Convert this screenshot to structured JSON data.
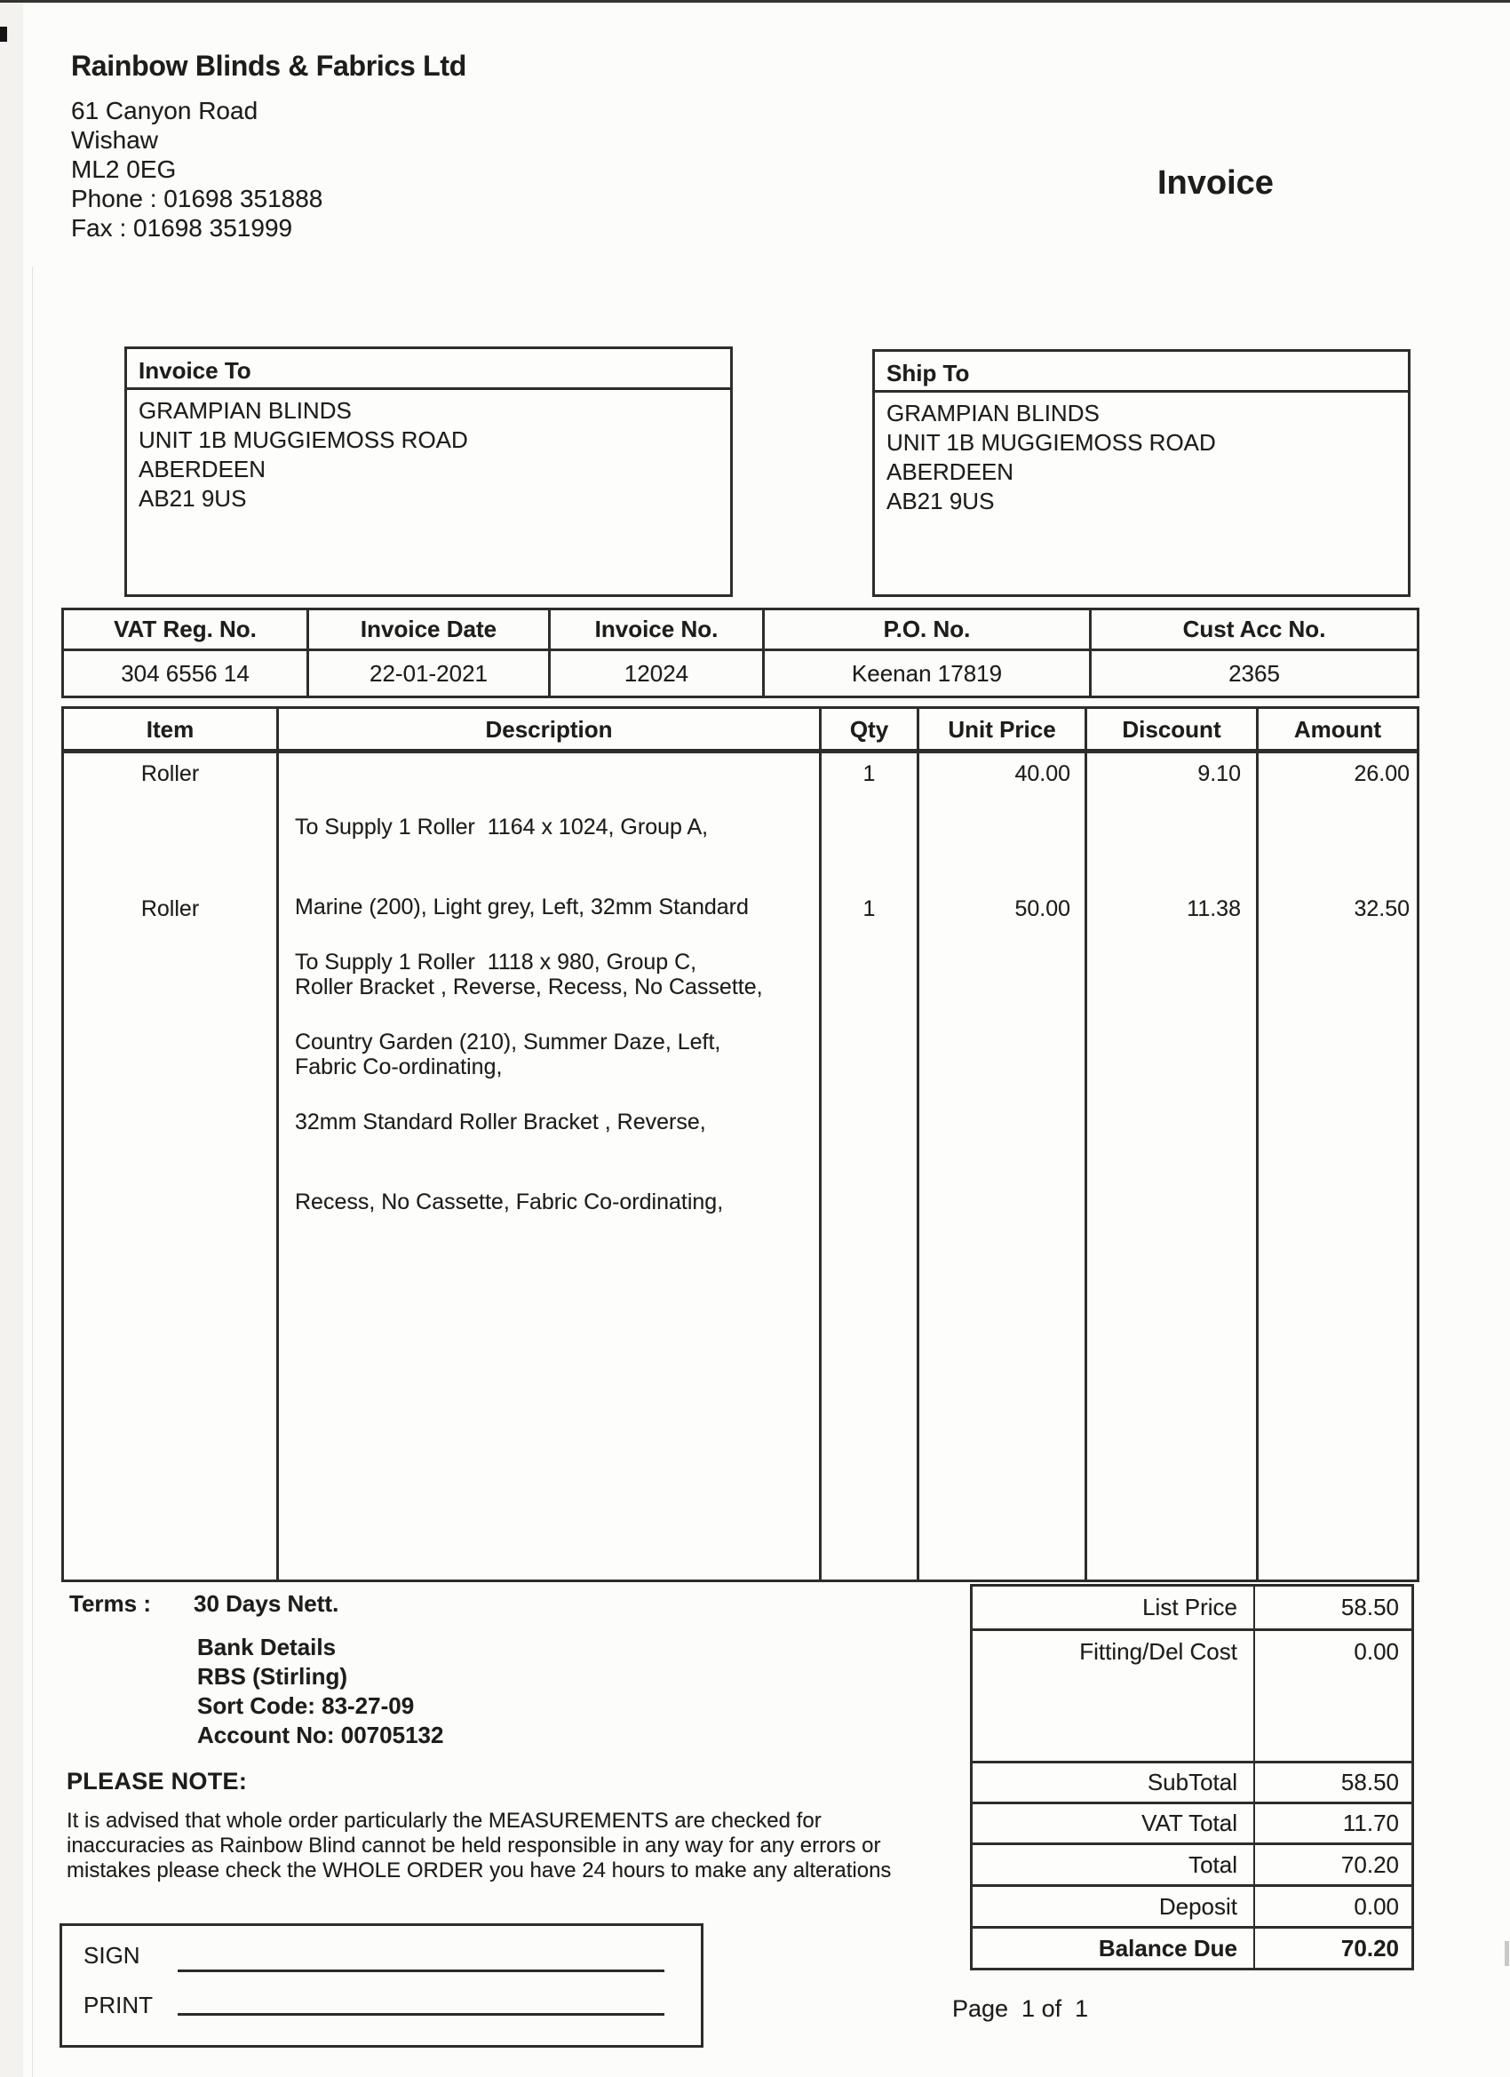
{
  "colors": {
    "ink": "#1d1d1b",
    "border": "#2d2d2b",
    "paper": "#fcfcfa"
  },
  "company": {
    "name": "Rainbow Blinds & Fabrics Ltd",
    "address_lines": [
      "61 Canyon Road",
      "Wishaw",
      "ML2 0EG"
    ],
    "phone": "Phone : 01698 351888",
    "fax": "Fax : 01698 351999"
  },
  "document": {
    "title": "Invoice",
    "page_footer": "Page  1 of  1"
  },
  "invoice_to": {
    "label": "Invoice To",
    "lines": [
      "GRAMPIAN BLINDS",
      "UNIT 1B MUGGIEMOSS ROAD",
      "ABERDEEN",
      "AB21 9US"
    ]
  },
  "ship_to": {
    "label": "Ship To",
    "lines": [
      "GRAMPIAN BLINDS",
      "UNIT 1B MUGGIEMOSS ROAD",
      "ABERDEEN",
      "AB21 9US"
    ]
  },
  "meta_table": {
    "headers": [
      "VAT Reg. No.",
      "Invoice Date",
      "Invoice No.",
      "P.O. No.",
      "Cust Acc No."
    ],
    "values": [
      "304 6556 14",
      "22-01-2021",
      "12024",
      "Keenan 17819",
      "2365"
    ]
  },
  "items_table": {
    "headers": [
      "Item",
      "Description",
      "Qty",
      "Unit Price",
      "Discount",
      "Amount"
    ],
    "rows": [
      {
        "item": "Roller",
        "description_lines": [
          "To Supply 1 Roller  1164 x 1024, Group A,",
          "Marine (200), Light grey, Left, 32mm Standard",
          "Roller Bracket , Reverse, Recess, No Cassette,",
          "Fabric Co-ordinating,"
        ],
        "qty": "1",
        "unit_price": "40.00",
        "discount": "9.10",
        "amount": "26.00"
      },
      {
        "item": "Roller",
        "description_lines": [
          "To Supply 1 Roller  1118 x 980, Group C,",
          "Country Garden (210), Summer Daze, Left,",
          "32mm Standard Roller Bracket , Reverse,",
          "Recess, No Cassette, Fabric Co-ordinating,"
        ],
        "qty": "1",
        "unit_price": "50.00",
        "discount": "11.38",
        "amount": "32.50"
      }
    ]
  },
  "terms": {
    "label": "Terms :",
    "value": "30 Days Nett."
  },
  "bank": {
    "lines": [
      "Bank Details",
      "RBS (Stirling)",
      "Sort Code: 83-27-09",
      "Account No: 00705132"
    ]
  },
  "note": {
    "heading": "PLEASE NOTE:",
    "lines": [
      "It is advised that whole order particularly the MEASUREMENTS are checked for",
      "inaccuracies as Rainbow Blind cannot be held responsible in any way for any errors or",
      "mistakes please check the WHOLE ORDER you have 24 hours to make any alterations"
    ]
  },
  "totals": {
    "rows": [
      {
        "label": "List Price",
        "value": "58.50"
      },
      {
        "label": "Fitting/Del Cost",
        "value": "0.00"
      },
      {
        "label": "SubTotal",
        "value": "58.50"
      },
      {
        "label": "VAT Total",
        "value": "11.70"
      },
      {
        "label": "Total",
        "value": "70.20"
      },
      {
        "label": "Deposit",
        "value": "0.00"
      },
      {
        "label": "Balance Due",
        "value": "70.20"
      }
    ]
  },
  "signature": {
    "sign_label": "SIGN",
    "print_label": "PRINT"
  }
}
